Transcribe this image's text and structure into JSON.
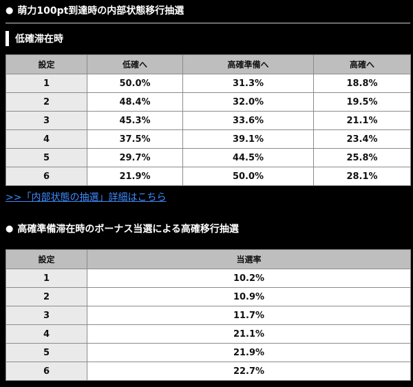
{
  "heading1": {
    "bullet": "●",
    "title": "萌力100pt到達時の内部状態移行抽選"
  },
  "subheading1": "低確滞在時",
  "table1": {
    "headers": [
      "設定",
      "低確へ",
      "高確準備へ",
      "高確へ"
    ],
    "rows": [
      [
        "1",
        "50.0%",
        "31.3%",
        "18.8%"
      ],
      [
        "2",
        "48.4%",
        "32.0%",
        "19.5%"
      ],
      [
        "3",
        "45.3%",
        "33.6%",
        "21.1%"
      ],
      [
        "4",
        "37.5%",
        "39.1%",
        "23.4%"
      ],
      [
        "5",
        "29.7%",
        "44.5%",
        "25.8%"
      ],
      [
        "6",
        "21.9%",
        "50.0%",
        "28.1%"
      ]
    ]
  },
  "link1": ">>「内部状態の抽選」詳細はこちら",
  "heading2": {
    "bullet": "●",
    "title": "高確準備滞在時のボーナス当選による高確移行抽選"
  },
  "table2": {
    "headers": [
      "設定",
      "当選率"
    ],
    "rows": [
      [
        "1",
        "10.2%"
      ],
      [
        "2",
        "10.9%"
      ],
      [
        "3",
        "11.7%"
      ],
      [
        "4",
        "21.1%"
      ],
      [
        "5",
        "21.9%"
      ],
      [
        "6",
        "22.7%"
      ]
    ]
  },
  "colors": {
    "background": "#000000",
    "header_cell": "#bebebe",
    "setting_cell": "#eaeaea",
    "link": "#3d8bff"
  }
}
